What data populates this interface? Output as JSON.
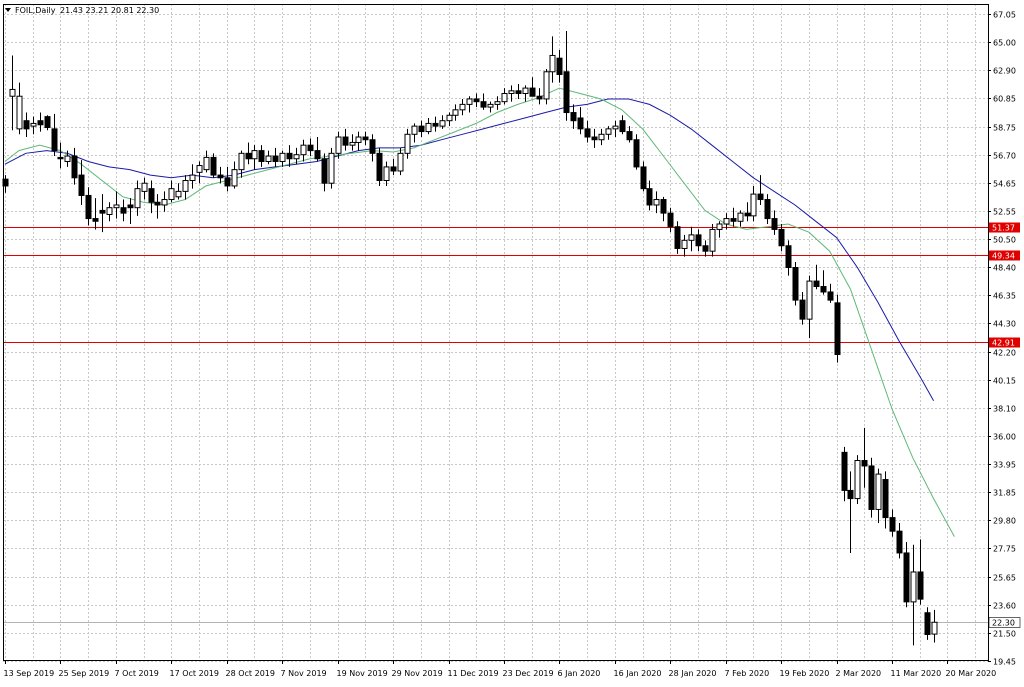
{
  "header": {
    "symbol": "FOIL,Daily",
    "ohlc": "21.43 23.21 20.81 22.30"
  },
  "colors": {
    "background": "#ffffff",
    "grid": "#c8c8c8",
    "bull_candle": "#ffffff",
    "bear_candle": "#000000",
    "ma_fast": "#5fb878",
    "ma_slow": "#1a1aa8",
    "hline": "#e00000",
    "hline_label_bg": "#e00000",
    "price_line": "#b4b4b4"
  },
  "chart_data": {
    "type": "candlestick",
    "ylim": [
      19.45,
      68.0
    ],
    "y_ticks": [
      "67.05",
      "65.00",
      "62.90",
      "60.85",
      "58.75",
      "56.70",
      "54.65",
      "52.55",
      "50.50",
      "48.40",
      "46.35",
      "44.30",
      "42.20",
      "40.15",
      "38.10",
      "36.00",
      "33.95",
      "31.85",
      "29.80",
      "27.75",
      "25.65",
      "23.60",
      "21.50",
      "19.45"
    ],
    "x_ticks": [
      {
        "i": 0,
        "label": "13 Sep 2019"
      },
      {
        "i": 8,
        "label": "25 Sep 2019"
      },
      {
        "i": 16,
        "label": "7 Oct 2019"
      },
      {
        "i": 24,
        "label": "17 Oct 2019"
      },
      {
        "i": 32,
        "label": "28 Oct 2019"
      },
      {
        "i": 40,
        "label": "7 Nov 2019"
      },
      {
        "i": 48,
        "label": "19 Nov 2019"
      },
      {
        "i": 56,
        "label": "29 Nov 2019"
      },
      {
        "i": 64,
        "label": "11 Dec 2019"
      },
      {
        "i": 72,
        "label": "23 Dec 2019"
      },
      {
        "i": 80,
        "label": "6 Jan 2020"
      },
      {
        "i": 88,
        "label": "16 Jan 2020"
      },
      {
        "i": 96,
        "label": "28 Jan 2020"
      },
      {
        "i": 104,
        "label": "7 Feb 2020"
      },
      {
        "i": 112,
        "label": "19 Feb 2020"
      },
      {
        "i": 120,
        "label": "2 Mar 2020"
      },
      {
        "i": 128,
        "label": "11 Mar 2020"
      },
      {
        "i": 136,
        "label": "20 Mar 2020"
      }
    ],
    "candles": [
      [
        54.9,
        55.2,
        53.9,
        54.4
      ],
      [
        61.0,
        64.0,
        58.5,
        61.5
      ],
      [
        58.6,
        62.0,
        58.2,
        61.0
      ],
      [
        59.2,
        59.8,
        58.0,
        58.6
      ],
      [
        58.8,
        59.5,
        58.2,
        59.0
      ],
      [
        59.2,
        59.8,
        58.4,
        58.9
      ],
      [
        59.5,
        59.6,
        58.5,
        58.7
      ],
      [
        58.6,
        59.7,
        56.6,
        57.0
      ],
      [
        56.5,
        57.6,
        55.7,
        56.4
      ],
      [
        56.2,
        57.0,
        55.8,
        56.6
      ],
      [
        56.6,
        57.2,
        54.5,
        55.0
      ],
      [
        55.2,
        56.3,
        53.0,
        53.7
      ],
      [
        53.7,
        54.3,
        51.5,
        52.0
      ],
      [
        52.0,
        53.5,
        51.2,
        51.8
      ],
      [
        52.6,
        53.8,
        51.0,
        52.4
      ],
      [
        52.3,
        53.2,
        51.8,
        52.8
      ],
      [
        52.8,
        54.0,
        52.0,
        53.0
      ],
      [
        52.8,
        53.4,
        51.8,
        52.4
      ],
      [
        53.0,
        53.5,
        51.6,
        52.8
      ],
      [
        52.8,
        54.8,
        52.2,
        54.2
      ],
      [
        54.0,
        55.0,
        53.4,
        54.6
      ],
      [
        54.2,
        54.8,
        52.4,
        53.2
      ],
      [
        53.2,
        53.8,
        52.0,
        53.0
      ],
      [
        53.0,
        54.0,
        52.5,
        53.4
      ],
      [
        53.4,
        54.8,
        53.2,
        54.2
      ],
      [
        53.6,
        54.6,
        53.4,
        54.0
      ],
      [
        54.0,
        55.2,
        53.4,
        54.8
      ],
      [
        54.8,
        56.0,
        54.2,
        55.2
      ],
      [
        55.4,
        56.2,
        54.6,
        55.9
      ],
      [
        55.6,
        57.0,
        55.4,
        56.5
      ],
      [
        56.5,
        56.8,
        55.0,
        55.2
      ],
      [
        55.2,
        55.8,
        54.6,
        55.0
      ],
      [
        55.0,
        55.8,
        54.0,
        54.4
      ],
      [
        54.4,
        56.2,
        54.2,
        55.6
      ],
      [
        55.6,
        57.0,
        55.0,
        56.8
      ],
      [
        56.8,
        57.6,
        56.0,
        56.4
      ],
      [
        56.4,
        57.4,
        55.6,
        57.0
      ],
      [
        57.0,
        57.4,
        55.8,
        56.2
      ],
      [
        56.2,
        57.0,
        56.0,
        56.6
      ],
      [
        56.6,
        57.2,
        55.8,
        56.2
      ],
      [
        56.2,
        57.0,
        55.8,
        56.8
      ],
      [
        56.8,
        57.4,
        55.8,
        56.4
      ],
      [
        56.4,
        57.2,
        56.0,
        56.7
      ],
      [
        56.7,
        57.8,
        56.2,
        57.4
      ],
      [
        57.4,
        57.9,
        56.6,
        57.0
      ],
      [
        57.0,
        58.0,
        56.2,
        56.4
      ],
      [
        56.4,
        56.8,
        54.0,
        54.6
      ],
      [
        54.6,
        57.2,
        54.2,
        56.8
      ],
      [
        56.8,
        58.4,
        56.4,
        58.0
      ],
      [
        58.0,
        58.6,
        57.0,
        57.4
      ],
      [
        57.4,
        58.2,
        57.0,
        57.6
      ],
      [
        57.6,
        58.4,
        57.0,
        58.0
      ],
      [
        58.0,
        58.4,
        57.4,
        57.8
      ],
      [
        57.8,
        58.2,
        56.2,
        56.8
      ],
      [
        56.8,
        57.2,
        54.4,
        54.8
      ],
      [
        54.8,
        56.2,
        54.4,
        55.8
      ],
      [
        55.8,
        56.4,
        55.2,
        55.5
      ],
      [
        55.5,
        57.2,
        55.2,
        56.8
      ],
      [
        56.8,
        58.6,
        56.4,
        58.2
      ],
      [
        58.2,
        59.0,
        57.6,
        58.8
      ],
      [
        58.8,
        59.2,
        58.0,
        58.4
      ],
      [
        58.4,
        59.4,
        58.2,
        59.0
      ],
      [
        59.0,
        59.5,
        58.4,
        58.8
      ],
      [
        58.8,
        59.6,
        58.6,
        59.2
      ],
      [
        59.2,
        59.8,
        58.8,
        59.6
      ],
      [
        59.6,
        60.4,
        59.2,
        60.0
      ],
      [
        60.0,
        60.8,
        59.6,
        60.4
      ],
      [
        60.4,
        61.0,
        59.8,
        60.8
      ],
      [
        60.8,
        61.2,
        60.2,
        60.6
      ],
      [
        60.6,
        61.2,
        60.0,
        60.2
      ],
      [
        60.2,
        60.6,
        59.8,
        60.4
      ],
      [
        60.4,
        61.0,
        60.0,
        60.6
      ],
      [
        60.6,
        61.6,
        60.4,
        61.2
      ],
      [
        61.2,
        61.8,
        60.6,
        61.4
      ],
      [
        61.4,
        61.9,
        60.8,
        61.2
      ],
      [
        61.2,
        61.8,
        60.6,
        61.6
      ],
      [
        61.6,
        62.4,
        61.0,
        61.0
      ],
      [
        61.0,
        61.6,
        60.4,
        60.8
      ],
      [
        60.8,
        63.0,
        60.4,
        62.8
      ],
      [
        62.8,
        65.4,
        62.0,
        64.0
      ],
      [
        63.8,
        64.4,
        62.0,
        62.6
      ],
      [
        62.8,
        65.8,
        59.2,
        59.8
      ],
      [
        59.8,
        60.4,
        58.6,
        59.2
      ],
      [
        59.4,
        60.2,
        58.2,
        58.6
      ],
      [
        58.6,
        59.2,
        57.6,
        58.0
      ],
      [
        58.0,
        58.6,
        57.2,
        57.8
      ],
      [
        57.8,
        58.6,
        57.4,
        58.2
      ],
      [
        58.2,
        58.8,
        57.8,
        58.6
      ],
      [
        58.6,
        59.2,
        58.0,
        58.8
      ],
      [
        59.2,
        59.6,
        58.2,
        58.4
      ],
      [
        58.4,
        58.8,
        57.6,
        57.8
      ],
      [
        57.8,
        58.2,
        55.6,
        55.8
      ],
      [
        55.8,
        56.2,
        54.0,
        54.2
      ],
      [
        54.2,
        54.8,
        52.6,
        53.0
      ],
      [
        53.0,
        54.0,
        52.4,
        53.4
      ],
      [
        53.4,
        53.6,
        51.8,
        52.4
      ],
      [
        52.4,
        52.8,
        51.0,
        51.4
      ],
      [
        51.4,
        51.8,
        49.4,
        49.8
      ],
      [
        49.8,
        50.8,
        49.2,
        50.4
      ],
      [
        50.4,
        51.4,
        49.6,
        50.8
      ],
      [
        50.8,
        51.2,
        49.6,
        50.0
      ],
      [
        50.0,
        50.4,
        49.2,
        49.6
      ],
      [
        49.6,
        51.6,
        49.2,
        51.2
      ],
      [
        51.2,
        51.8,
        50.6,
        51.6
      ],
      [
        51.6,
        52.4,
        51.2,
        52.0
      ],
      [
        52.0,
        52.8,
        51.4,
        51.8
      ],
      [
        51.8,
        52.6,
        51.4,
        52.4
      ],
      [
        52.4,
        53.2,
        51.8,
        52.2
      ],
      [
        52.2,
        54.4,
        51.8,
        53.8
      ],
      [
        53.8,
        55.2,
        53.0,
        53.4
      ],
      [
        53.4,
        53.8,
        51.6,
        52.0
      ],
      [
        52.0,
        52.6,
        50.8,
        51.2
      ],
      [
        51.2,
        51.6,
        49.6,
        50.0
      ],
      [
        50.0,
        50.4,
        47.8,
        48.4
      ],
      [
        48.4,
        48.8,
        45.6,
        46.0
      ],
      [
        46.0,
        46.6,
        44.2,
        44.6
      ],
      [
        44.6,
        47.8,
        43.2,
        47.4
      ],
      [
        47.4,
        48.6,
        46.8,
        47.0
      ],
      [
        47.0,
        48.2,
        46.4,
        46.6
      ],
      [
        46.6,
        47.2,
        45.8,
        46.0
      ],
      [
        45.8,
        46.4,
        41.4,
        42.0
      ],
      [
        34.8,
        35.2,
        31.2,
        32.0
      ],
      [
        32.0,
        33.4,
        27.4,
        31.4
      ],
      [
        31.4,
        34.6,
        31.0,
        34.2
      ],
      [
        34.2,
        36.6,
        32.2,
        33.8
      ],
      [
        33.8,
        34.4,
        30.0,
        30.6
      ],
      [
        30.6,
        33.6,
        29.6,
        33.2
      ],
      [
        32.8,
        33.4,
        29.2,
        30.0
      ],
      [
        30.0,
        30.6,
        28.6,
        29.0
      ],
      [
        29.0,
        29.6,
        27.0,
        27.4
      ],
      [
        27.4,
        28.2,
        23.4,
        23.8
      ],
      [
        23.8,
        28.0,
        20.6,
        26.0
      ],
      [
        26.0,
        28.4,
        23.6,
        24.0
      ],
      [
        23.0,
        23.4,
        21.0,
        21.4
      ],
      [
        21.43,
        23.21,
        20.81,
        22.3
      ]
    ],
    "ma_fast": [
      [
        0,
        56.2
      ],
      [
        2,
        57.0
      ],
      [
        5,
        57.4
      ],
      [
        8,
        57.0
      ],
      [
        11,
        56.0
      ],
      [
        14,
        54.8
      ],
      [
        17,
        53.6
      ],
      [
        20,
        53.2
      ],
      [
        23,
        53.0
      ],
      [
        26,
        53.4
      ],
      [
        29,
        54.4
      ],
      [
        32,
        54.8
      ],
      [
        35,
        55.2
      ],
      [
        38,
        55.6
      ],
      [
        41,
        56.0
      ],
      [
        44,
        56.4
      ],
      [
        47,
        56.6
      ],
      [
        50,
        56.8
      ],
      [
        53,
        57.0
      ],
      [
        56,
        56.9
      ],
      [
        59,
        57.2
      ],
      [
        62,
        57.8
      ],
      [
        65,
        58.4
      ],
      [
        68,
        59.0
      ],
      [
        71,
        59.8
      ],
      [
        74,
        60.4
      ],
      [
        77,
        60.9
      ],
      [
        80,
        61.6
      ],
      [
        83,
        61.2
      ],
      [
        86,
        60.8
      ],
      [
        89,
        60.0
      ],
      [
        92,
        58.6
      ],
      [
        95,
        56.6
      ],
      [
        98,
        54.6
      ],
      [
        101,
        52.6
      ],
      [
        104,
        51.6
      ],
      [
        107,
        51.2
      ],
      [
        110,
        51.4
      ],
      [
        113,
        51.6
      ],
      [
        116,
        51.0
      ],
      [
        119,
        49.6
      ],
      [
        122,
        46.8
      ],
      [
        125,
        42.4
      ],
      [
        128,
        38.0
      ],
      [
        131,
        34.4
      ],
      [
        134,
        31.4
      ],
      [
        137,
        28.6
      ]
    ],
    "ma_slow": [
      [
        0,
        56.0
      ],
      [
        3,
        56.8
      ],
      [
        6,
        57.0
      ],
      [
        9,
        56.8
      ],
      [
        12,
        56.2
      ],
      [
        15,
        55.8
      ],
      [
        18,
        55.6
      ],
      [
        21,
        55.2
      ],
      [
        24,
        55.0
      ],
      [
        27,
        55.2
      ],
      [
        30,
        55.0
      ],
      [
        33,
        55.2
      ],
      [
        36,
        55.6
      ],
      [
        39,
        55.8
      ],
      [
        42,
        56.0
      ],
      [
        45,
        56.2
      ],
      [
        48,
        56.6
      ],
      [
        51,
        57.0
      ],
      [
        54,
        57.2
      ],
      [
        57,
        57.2
      ],
      [
        60,
        57.4
      ],
      [
        63,
        57.8
      ],
      [
        66,
        58.2
      ],
      [
        69,
        58.6
      ],
      [
        72,
        59.0
      ],
      [
        75,
        59.4
      ],
      [
        78,
        59.8
      ],
      [
        81,
        60.2
      ],
      [
        84,
        60.4
      ],
      [
        87,
        60.8
      ],
      [
        90,
        60.8
      ],
      [
        93,
        60.4
      ],
      [
        96,
        59.6
      ],
      [
        99,
        58.6
      ],
      [
        102,
        57.4
      ],
      [
        105,
        56.2
      ],
      [
        108,
        55.0
      ],
      [
        111,
        54.0
      ],
      [
        114,
        53.0
      ],
      [
        117,
        51.8
      ],
      [
        120,
        50.6
      ],
      [
        123,
        48.4
      ],
      [
        126,
        45.8
      ],
      [
        129,
        43.0
      ],
      [
        132,
        40.4
      ],
      [
        134,
        38.6
      ]
    ],
    "hlines": [
      {
        "value": 51.37,
        "label": "51.37"
      },
      {
        "value": 49.34,
        "label": "49.34"
      },
      {
        "value": 42.91,
        "label": "42.91"
      }
    ],
    "last_price": {
      "value": 22.3,
      "label": "22.30"
    }
  }
}
